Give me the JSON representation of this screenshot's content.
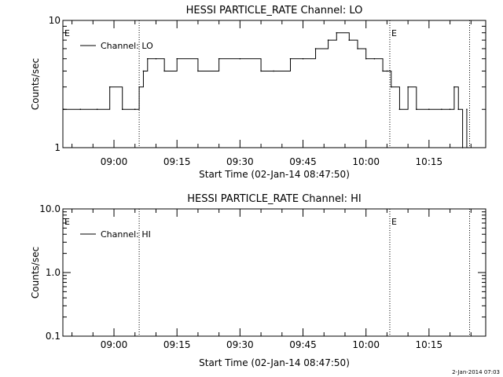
{
  "footer_timestamp": "2-Jan-2014 07:03",
  "chart_data": [
    {
      "type": "line",
      "title": "HESSI PARTICLE_RATE Channel: LO",
      "xlabel": "Start Time (02-Jan-14 08:47:50)",
      "ylabel": "Counts/sec",
      "yscale": "log",
      "ylim": [
        1,
        10
      ],
      "yticks": [
        1,
        10
      ],
      "ytick_labels": [
        "1",
        "10"
      ],
      "xlim": [
        "08:47:50",
        "10:28:30"
      ],
      "xticks": [
        "09:00",
        "09:15",
        "09:30",
        "09:45",
        "10:00",
        "10:15"
      ],
      "legend": "top-left",
      "vlines": [
        "09:06:00",
        "10:05:40",
        "10:24:40"
      ],
      "markers": [
        {
          "text": "E",
          "x": "08:47:50"
        },
        {
          "text": "E",
          "x": "10:05:40"
        }
      ],
      "series": [
        {
          "name": "Channel: LO",
          "x": [
            "08:48",
            "08:52",
            "08:56",
            "08:59",
            "09:02",
            "09:05",
            "09:06",
            "09:07",
            "09:08",
            "09:10",
            "09:12",
            "09:15",
            "09:20",
            "09:25",
            "09:30",
            "09:35",
            "09:38",
            "09:42",
            "09:45",
            "09:48",
            "09:51",
            "09:53",
            "09:56",
            "09:58",
            "10:00",
            "10:02",
            "10:04",
            "10:05",
            "10:06",
            "10:08",
            "10:10",
            "10:12",
            "10:15",
            "10:18",
            "10:20",
            "10:21",
            "10:22",
            "10:23",
            "10:24"
          ],
          "y": [
            2,
            2,
            2,
            3,
            2,
            2,
            3,
            4,
            5,
            5,
            4,
            5,
            4,
            5,
            5,
            4,
            4,
            5,
            5,
            6,
            7,
            8,
            7,
            6,
            5,
            5,
            4,
            4,
            3,
            2,
            3,
            2,
            2,
            2,
            2,
            3,
            2,
            1,
            2
          ]
        }
      ]
    },
    {
      "type": "line",
      "title": "HESSI PARTICLE_RATE Channel: HI",
      "xlabel": "Start Time (02-Jan-14 08:47:50)",
      "ylabel": "Counts/sec",
      "yscale": "log",
      "ylim": [
        0.1,
        10
      ],
      "yticks": [
        0.1,
        1,
        10
      ],
      "ytick_labels": [
        "0.1",
        "1.0",
        "10.0"
      ],
      "xlim": [
        "08:47:50",
        "10:28:30"
      ],
      "xticks": [
        "09:00",
        "09:15",
        "09:30",
        "09:45",
        "10:00",
        "10:15"
      ],
      "legend": "top-left",
      "vlines": [
        "09:06:00",
        "10:05:40",
        "10:24:40"
      ],
      "markers": [
        {
          "text": "E",
          "x": "08:47:50"
        },
        {
          "text": "E",
          "x": "10:05:40"
        }
      ],
      "series": [
        {
          "name": "Channel: HI",
          "x": [],
          "y": []
        }
      ]
    }
  ]
}
